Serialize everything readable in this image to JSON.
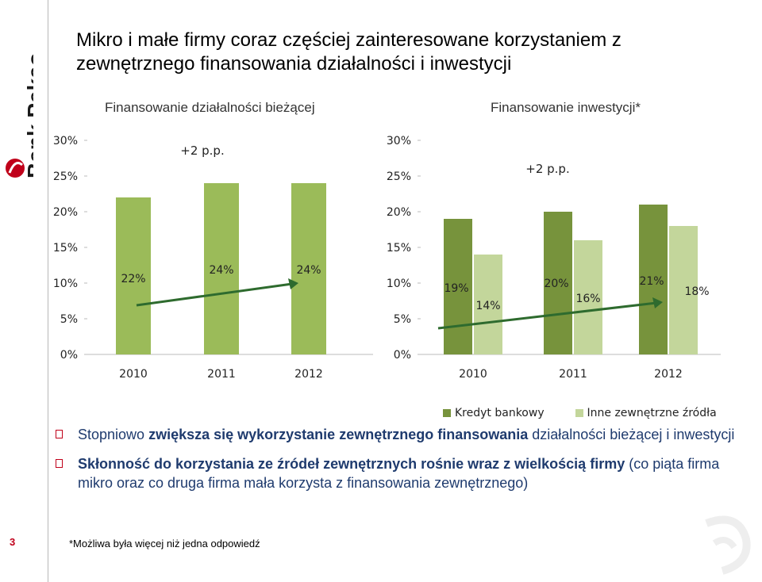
{
  "brand": {
    "logo_text": "Bank Pekao",
    "accent": "#c0001a"
  },
  "title": "Mikro i małe firmy coraz częściej zainteresowane korzystaniem z zewnętrznego finansowania działalności i inwestycji",
  "colors": {
    "light_green": "#9bbb59",
    "dark_green": "#77933c",
    "pale_green": "#c3d69b",
    "arrow": "#2e6b2e"
  },
  "chart_data": [
    {
      "type": "bar",
      "title": "Finansowanie działalności bieżącej",
      "categories": [
        "2010",
        "2011",
        "2012"
      ],
      "series": [
        {
          "values": [
            22,
            24,
            24
          ],
          "labels": [
            "22%",
            "24%",
            "24%"
          ]
        }
      ],
      "ylim": [
        0,
        30
      ],
      "yticks": [
        "0%",
        "5%",
        "10%",
        "15%",
        "20%",
        "25%",
        "30%"
      ],
      "annotation": "+2 p.p."
    },
    {
      "type": "bar",
      "title": "Finansowanie inwestycji*",
      "categories": [
        "2010",
        "2011",
        "2012"
      ],
      "series": [
        {
          "name": "Kredyt bankowy",
          "values": [
            19,
            20,
            21
          ],
          "labels": [
            "19%",
            "20%",
            "21%"
          ]
        },
        {
          "name": "Inne zewnętrzne źródła",
          "values": [
            14,
            16,
            18
          ],
          "labels": [
            "14%",
            "16%",
            "18%"
          ]
        }
      ],
      "ylim": [
        0,
        30
      ],
      "yticks": [
        "0%",
        "5%",
        "10%",
        "15%",
        "20%",
        "25%",
        "30%"
      ],
      "annotation": "+2 p.p.",
      "legend_position": "bottom"
    }
  ],
  "bullets": [
    {
      "pre": "Stopniowo ",
      "bold": "zwiększa się wykorzystanie zewnętrznego finansowania",
      "post": " działalności bieżącej i inwestycji"
    },
    {
      "pre": "",
      "bold": "Skłonność do korzystania ze źródeł zewnętrznych rośnie wraz z wielkością firmy",
      "post": " (co piąta firma mikro oraz co druga firma mała korzysta z finansowania zewnętrznego)"
    }
  ],
  "page_number": "3",
  "footnote": "*Możliwa była więcej niż jedna odpowiedź"
}
